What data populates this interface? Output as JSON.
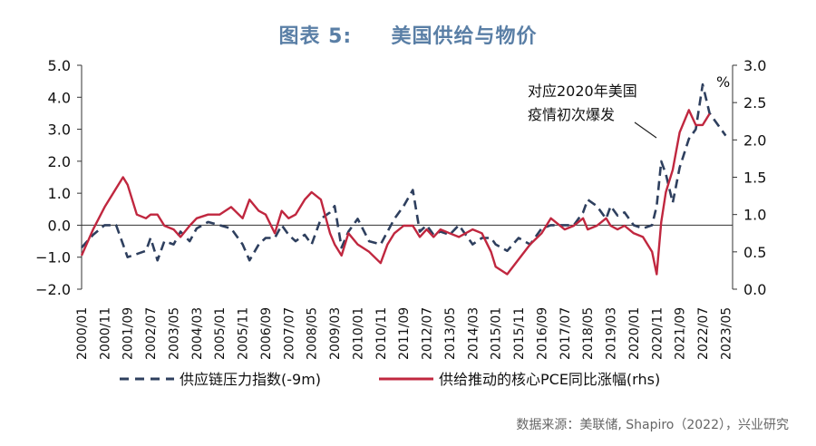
{
  "title": {
    "prefix": "图表 5:",
    "main": "美国供给与物价"
  },
  "source": "数据来源：美联储, Shapiro（2022），兴业研究",
  "chart_data": {
    "type": "line",
    "left_axis": {
      "ylim": [
        -2.0,
        5.0
      ],
      "ticks": [
        "5.0",
        "4.0",
        "3.0",
        "2.0",
        "1.0",
        "0.0",
        "−1.0",
        "−2.0"
      ]
    },
    "right_axis": {
      "ylim": [
        0.0,
        3.0
      ],
      "ticks": [
        "3.0",
        "2.5",
        "2.0",
        "1.5",
        "1.0",
        "0.5",
        "0.0"
      ],
      "unit": "%"
    },
    "x_ticks": [
      "2000/01",
      "2000/11",
      "2001/09",
      "2002/07",
      "2003/05",
      "2004/03",
      "2005/01",
      "2005/11",
      "2006/09",
      "2007/07",
      "2008/05",
      "2009/03",
      "2010/01",
      "2010/11",
      "2011/09",
      "2012/07",
      "2013/05",
      "2014/03",
      "2015/01",
      "2015/11",
      "2016/09",
      "2017/07",
      "2018/05",
      "2019/03",
      "2020/01",
      "2020/11",
      "2021/09",
      "2022/07",
      "2023/05"
    ],
    "annotation": {
      "line1": "对应2020年美国",
      "line2": "疫情初次爆发",
      "date": "2020/11"
    },
    "series": [
      {
        "name": "供应链压力指数(-9m)",
        "axis": "left",
        "color": "#2e3f5e",
        "style": "dashed",
        "points": [
          [
            "2000/01",
            -0.7
          ],
          [
            "2000/06",
            -0.3
          ],
          [
            "2000/11",
            0.0
          ],
          [
            "2001/04",
            0.0
          ],
          [
            "2001/07",
            -0.6
          ],
          [
            "2001/09",
            -1.0
          ],
          [
            "2002/01",
            -0.9
          ],
          [
            "2002/05",
            -0.8
          ],
          [
            "2002/07",
            -0.4
          ],
          [
            "2002/10",
            -1.1
          ],
          [
            "2003/01",
            -0.5
          ],
          [
            "2003/05",
            -0.6
          ],
          [
            "2003/08",
            -0.2
          ],
          [
            "2003/12",
            -0.5
          ],
          [
            "2004/03",
            -0.1
          ],
          [
            "2004/08",
            0.1
          ],
          [
            "2005/01",
            0.0
          ],
          [
            "2005/06",
            -0.1
          ],
          [
            "2005/11",
            -0.6
          ],
          [
            "2006/02",
            -1.1
          ],
          [
            "2006/06",
            -0.6
          ],
          [
            "2006/09",
            -0.4
          ],
          [
            "2007/01",
            -0.4
          ],
          [
            "2007/04",
            0.0
          ],
          [
            "2007/07",
            -0.3
          ],
          [
            "2007/10",
            -0.5
          ],
          [
            "2008/02",
            -0.3
          ],
          [
            "2008/05",
            -0.6
          ],
          [
            "2008/09",
            0.2
          ],
          [
            "2009/01",
            0.4
          ],
          [
            "2009/03",
            0.6
          ],
          [
            "2009/06",
            -0.7
          ],
          [
            "2009/09",
            -0.2
          ],
          [
            "2010/01",
            0.2
          ],
          [
            "2010/06",
            -0.5
          ],
          [
            "2010/11",
            -0.6
          ],
          [
            "2011/02",
            -0.2
          ],
          [
            "2011/05",
            0.2
          ],
          [
            "2011/09",
            0.6
          ],
          [
            "2012/01",
            1.1
          ],
          [
            "2012/04",
            -0.2
          ],
          [
            "2012/07",
            0.0
          ],
          [
            "2012/10",
            -0.3
          ],
          [
            "2013/01",
            -0.2
          ],
          [
            "2013/05",
            -0.3
          ],
          [
            "2013/09",
            0.0
          ],
          [
            "2014/03",
            -0.6
          ],
          [
            "2014/07",
            -0.4
          ],
          [
            "2014/11",
            -0.4
          ],
          [
            "2015/01",
            -0.6
          ],
          [
            "2015/06",
            -0.8
          ],
          [
            "2015/11",
            -0.4
          ],
          [
            "2016/04",
            -0.6
          ],
          [
            "2016/09",
            -0.1
          ],
          [
            "2017/01",
            0.0
          ],
          [
            "2017/07",
            0.0
          ],
          [
            "2017/11",
            0.0
          ],
          [
            "2018/03",
            0.4
          ],
          [
            "2018/05",
            0.8
          ],
          [
            "2018/09",
            0.6
          ],
          [
            "2019/01",
            0.2
          ],
          [
            "2019/03",
            0.6
          ],
          [
            "2019/06",
            0.3
          ],
          [
            "2019/09",
            0.4
          ],
          [
            "2020/01",
            0.0
          ],
          [
            "2020/05",
            -0.1
          ],
          [
            "2020/09",
            0.0
          ],
          [
            "2020/11",
            0.6
          ],
          [
            "2021/01",
            2.0
          ],
          [
            "2021/03",
            1.6
          ],
          [
            "2021/06",
            0.7
          ],
          [
            "2021/09",
            1.8
          ],
          [
            "2022/01",
            2.7
          ],
          [
            "2022/04",
            3.0
          ],
          [
            "2022/07",
            4.4
          ],
          [
            "2022/10",
            3.5
          ],
          [
            "2023/05",
            2.8
          ]
        ]
      },
      {
        "name": "供给推动的核心PCE同比涨幅(rhs)",
        "axis": "right",
        "color": "#c0273f",
        "style": "solid",
        "points": [
          [
            "2000/01",
            0.45
          ],
          [
            "2000/06",
            0.8
          ],
          [
            "2000/11",
            1.1
          ],
          [
            "2001/04",
            1.35
          ],
          [
            "2001/07",
            1.5
          ],
          [
            "2001/09",
            1.4
          ],
          [
            "2002/01",
            1.0
          ],
          [
            "2002/05",
            0.95
          ],
          [
            "2002/07",
            1.0
          ],
          [
            "2002/10",
            1.0
          ],
          [
            "2003/01",
            0.85
          ],
          [
            "2003/05",
            0.8
          ],
          [
            "2003/08",
            0.7
          ],
          [
            "2003/12",
            0.85
          ],
          [
            "2004/03",
            0.95
          ],
          [
            "2004/08",
            1.0
          ],
          [
            "2005/01",
            1.0
          ],
          [
            "2005/06",
            1.1
          ],
          [
            "2005/11",
            0.95
          ],
          [
            "2006/02",
            1.2
          ],
          [
            "2006/06",
            1.05
          ],
          [
            "2006/09",
            1.0
          ],
          [
            "2007/01",
            0.75
          ],
          [
            "2007/04",
            1.05
          ],
          [
            "2007/07",
            0.95
          ],
          [
            "2007/10",
            1.0
          ],
          [
            "2008/02",
            1.2
          ],
          [
            "2008/05",
            1.3
          ],
          [
            "2008/09",
            1.2
          ],
          [
            "2009/01",
            0.75
          ],
          [
            "2009/03",
            0.6
          ],
          [
            "2009/06",
            0.45
          ],
          [
            "2009/09",
            0.75
          ],
          [
            "2010/01",
            0.6
          ],
          [
            "2010/06",
            0.5
          ],
          [
            "2010/11",
            0.35
          ],
          [
            "2011/02",
            0.6
          ],
          [
            "2011/05",
            0.75
          ],
          [
            "2011/09",
            0.85
          ],
          [
            "2012/01",
            0.85
          ],
          [
            "2012/04",
            0.7
          ],
          [
            "2012/07",
            0.8
          ],
          [
            "2012/10",
            0.7
          ],
          [
            "2013/01",
            0.8
          ],
          [
            "2013/05",
            0.75
          ],
          [
            "2013/09",
            0.7
          ],
          [
            "2014/03",
            0.8
          ],
          [
            "2014/07",
            0.75
          ],
          [
            "2014/11",
            0.5
          ],
          [
            "2015/01",
            0.3
          ],
          [
            "2015/06",
            0.2
          ],
          [
            "2015/11",
            0.4
          ],
          [
            "2016/04",
            0.6
          ],
          [
            "2016/09",
            0.75
          ],
          [
            "2017/01",
            0.95
          ],
          [
            "2017/07",
            0.8
          ],
          [
            "2017/11",
            0.85
          ],
          [
            "2018/03",
            0.95
          ],
          [
            "2018/05",
            0.8
          ],
          [
            "2018/09",
            0.85
          ],
          [
            "2019/01",
            0.95
          ],
          [
            "2019/03",
            0.85
          ],
          [
            "2019/06",
            0.8
          ],
          [
            "2019/09",
            0.85
          ],
          [
            "2020/01",
            0.75
          ],
          [
            "2020/05",
            0.7
          ],
          [
            "2020/09",
            0.5
          ],
          [
            "2020/11",
            0.2
          ],
          [
            "2021/01",
            0.9
          ],
          [
            "2021/03",
            1.3
          ],
          [
            "2021/06",
            1.6
          ],
          [
            "2021/09",
            2.1
          ],
          [
            "2022/01",
            2.4
          ],
          [
            "2022/04",
            2.2
          ],
          [
            "2022/07",
            2.2
          ],
          [
            "2022/10",
            2.35
          ]
        ]
      }
    ],
    "legend": {
      "placement": "bottom"
    },
    "grid": false
  }
}
